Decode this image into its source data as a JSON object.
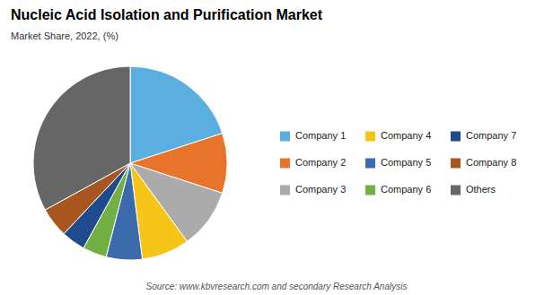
{
  "chart_data": {
    "type": "pie",
    "title": "Nucleic Acid Isolation and Purification Market",
    "subtitle": "Market Share, 2022, (%)",
    "source": "Source: www.kbvresearch.com and secondary Research Analysis",
    "categories": [
      "Company 1",
      "Company 2",
      "Company 3",
      "Company 4",
      "Company 5",
      "Company 6",
      "Company 7",
      "Company 8",
      "Others"
    ],
    "values": [
      20,
      10,
      10,
      8,
      6,
      4,
      4,
      5,
      33
    ],
    "colors": [
      "#5BAEE0",
      "#E8732A",
      "#ABABAB",
      "#F5C518",
      "#3B6BAD",
      "#72B043",
      "#1F4B8E",
      "#A85520",
      "#666666"
    ],
    "legend": "right"
  }
}
